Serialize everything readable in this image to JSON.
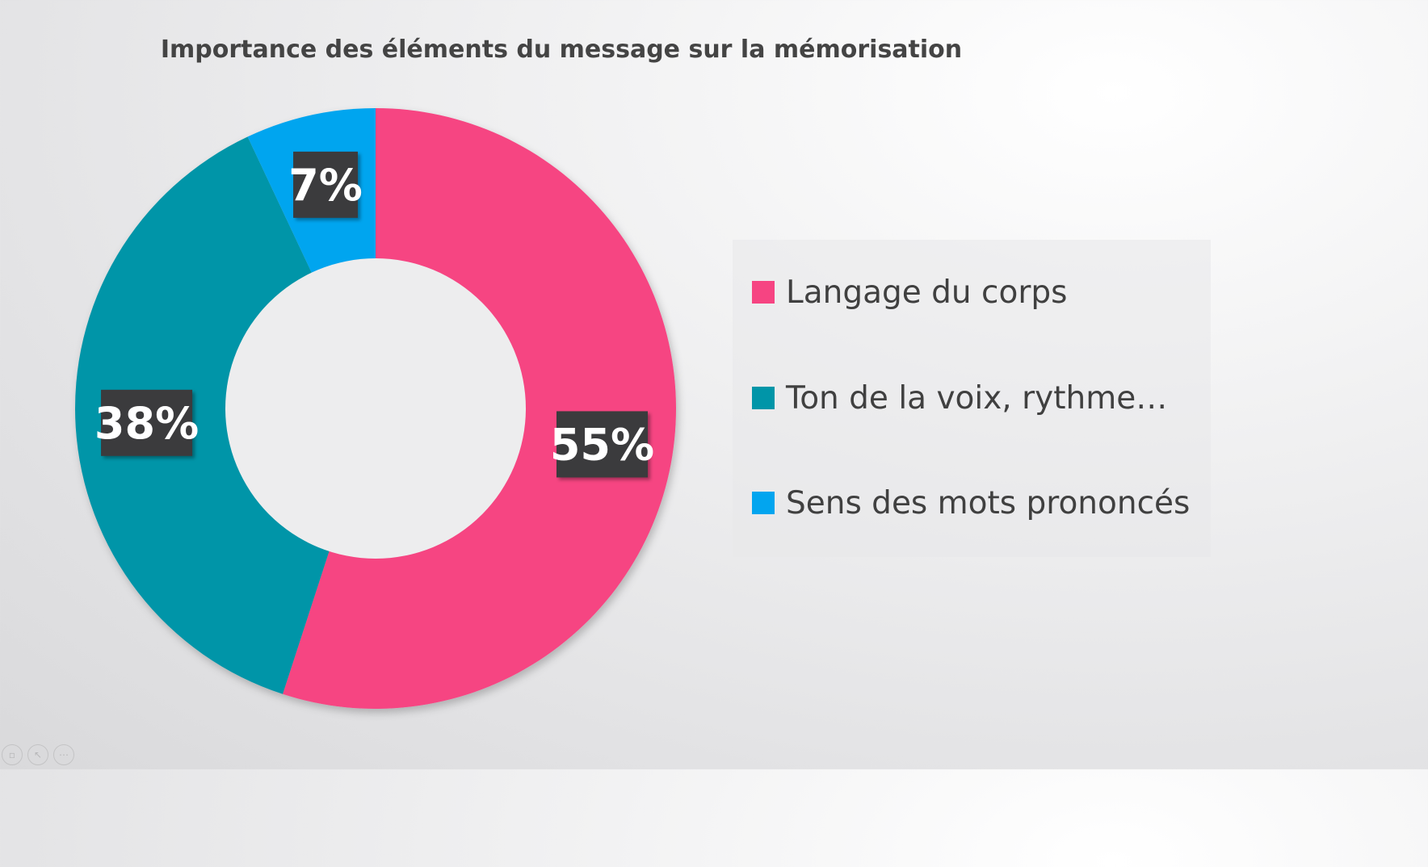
{
  "colors": {
    "langage": "#F64482",
    "ton": "#0095A8",
    "sens": "#02A5EF",
    "label_bg": "#3A3A3C",
    "hole": "#EDEDEE"
  },
  "chart_data": {
    "type": "donut",
    "title": "Importance des éléments du message sur la mémorisation",
    "categories": [
      "Langage du corps",
      "Ton de la voix, rythme…",
      "Sens des mots prononcés"
    ],
    "values": [
      55,
      38,
      7
    ],
    "data_labels": [
      "55%",
      "38%",
      "7%"
    ],
    "series_colors": [
      "#F64482",
      "#0095A8",
      "#02A5EF"
    ],
    "legend_position": "right",
    "start_angle": "top, clockwise"
  },
  "controls": {
    "icons": [
      "slide-icon",
      "pointer-icon",
      "more-icon"
    ]
  }
}
